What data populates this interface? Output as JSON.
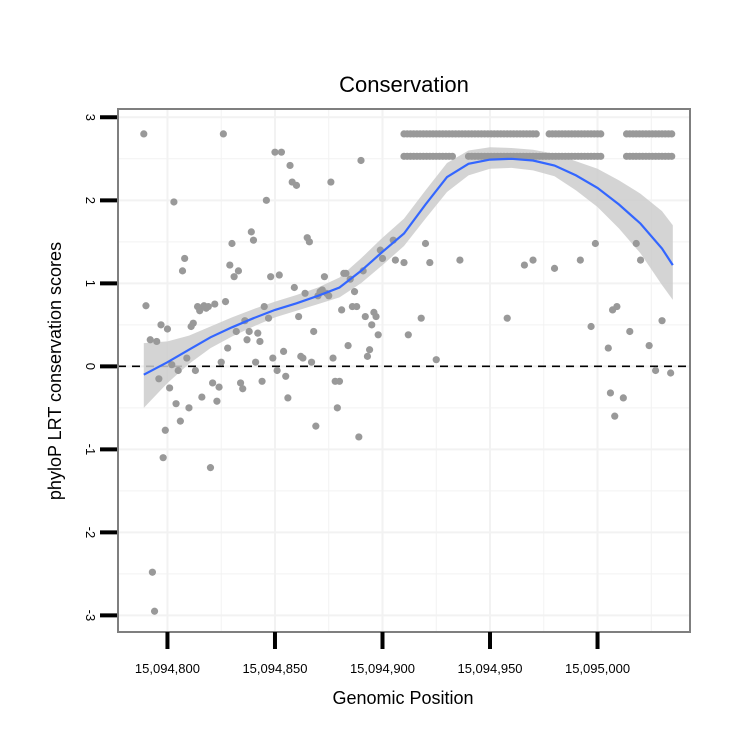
{
  "chart_data": {
    "type": "scatter",
    "title": "Conservation",
    "xlabel": "Genomic Position",
    "ylabel": "phyloP LRT conservation scores",
    "xlim": [
      15094777,
      15095043
    ],
    "ylim": [
      -3.2,
      3.1
    ],
    "x_ticks": [
      15094800,
      15094850,
      15094900,
      15094950,
      15095000
    ],
    "x_tick_labels": [
      "15,094,800",
      "15,094,850",
      "15,094,900",
      "15,094,950",
      "15,095,000"
    ],
    "y_ticks": [
      -3,
      -2,
      -1,
      0,
      1,
      2,
      3
    ],
    "y_tick_labels": [
      "-3",
      "-2",
      "-1",
      "0",
      "1",
      "2",
      "3"
    ],
    "reference_line": {
      "y": 0,
      "style": "dashed"
    },
    "colors": {
      "points": "#999999",
      "smooth_line": "#3366FF",
      "confidence_band": "#cccccc",
      "border": "#7f7f7f",
      "grid": "#f2f2f2"
    },
    "points": [
      [
        15094789,
        2.8
      ],
      [
        15094790,
        0.73
      ],
      [
        15094792,
        0.32
      ],
      [
        15094793,
        -2.48
      ],
      [
        15094794,
        -2.95
      ],
      [
        15094795,
        0.3
      ],
      [
        15094796,
        -0.15
      ],
      [
        15094797,
        0.5
      ],
      [
        15094798,
        -1.1
      ],
      [
        15094799,
        -0.77
      ],
      [
        15094800,
        0.45
      ],
      [
        15094801,
        -0.26
      ],
      [
        15094802,
        0.02
      ],
      [
        15094803,
        1.98
      ],
      [
        15094804,
        -0.45
      ],
      [
        15094805,
        -0.05
      ],
      [
        15094806,
        -0.66
      ],
      [
        15094807,
        1.15
      ],
      [
        15094808,
        1.3
      ],
      [
        15094809,
        0.1
      ],
      [
        15094810,
        -0.5
      ],
      [
        15094811,
        0.48
      ],
      [
        15094812,
        0.52
      ],
      [
        15094813,
        -0.05
      ],
      [
        15094814,
        0.72
      ],
      [
        15094815,
        0.67
      ],
      [
        15094816,
        -0.37
      ],
      [
        15094817,
        0.73
      ],
      [
        15094818,
        0.7
      ],
      [
        15094819,
        0.72
      ],
      [
        15094820,
        -1.22
      ],
      [
        15094821,
        -0.2
      ],
      [
        15094822,
        0.75
      ],
      [
        15094823,
        -0.42
      ],
      [
        15094824,
        -0.25
      ],
      [
        15094825,
        0.05
      ],
      [
        15094826,
        2.8
      ],
      [
        15094827,
        0.78
      ],
      [
        15094828,
        0.22
      ],
      [
        15094829,
        1.22
      ],
      [
        15094830,
        1.48
      ],
      [
        15094831,
        1.08
      ],
      [
        15094832,
        0.42
      ],
      [
        15094833,
        1.15
      ],
      [
        15094834,
        -0.2
      ],
      [
        15094835,
        -0.27
      ],
      [
        15094836,
        0.55
      ],
      [
        15094837,
        0.32
      ],
      [
        15094838,
        0.42
      ],
      [
        15094839,
        1.62
      ],
      [
        15094840,
        1.52
      ],
      [
        15094841,
        0.05
      ],
      [
        15094842,
        0.4
      ],
      [
        15094843,
        0.3
      ],
      [
        15094844,
        -0.18
      ],
      [
        15094845,
        0.72
      ],
      [
        15094846,
        2.0
      ],
      [
        15094847,
        0.58
      ],
      [
        15094848,
        1.08
      ],
      [
        15094849,
        0.1
      ],
      [
        15094850,
        2.58
      ],
      [
        15094851,
        -0.05
      ],
      [
        15094852,
        1.1
      ],
      [
        15094853,
        2.58
      ],
      [
        15094854,
        0.18
      ],
      [
        15094855,
        -0.12
      ],
      [
        15094856,
        -0.38
      ],
      [
        15094857,
        2.42
      ],
      [
        15094858,
        2.22
      ],
      [
        15094859,
        0.95
      ],
      [
        15094860,
        2.18
      ],
      [
        15094861,
        0.6
      ],
      [
        15094862,
        0.12
      ],
      [
        15094863,
        0.1
      ],
      [
        15094864,
        0.88
      ],
      [
        15094865,
        1.55
      ],
      [
        15094866,
        1.5
      ],
      [
        15094867,
        0.05
      ],
      [
        15094868,
        0.42
      ],
      [
        15094869,
        -0.72
      ],
      [
        15094870,
        0.85
      ],
      [
        15094871,
        0.9
      ],
      [
        15094872,
        0.92
      ],
      [
        15094873,
        1.08
      ],
      [
        15094874,
        0.88
      ],
      [
        15094875,
        0.85
      ],
      [
        15094876,
        2.22
      ],
      [
        15094877,
        0.1
      ],
      [
        15094878,
        -0.18
      ],
      [
        15094879,
        -0.5
      ],
      [
        15094880,
        -0.18
      ],
      [
        15094881,
        0.68
      ],
      [
        15094882,
        1.12
      ],
      [
        15094883,
        1.12
      ],
      [
        15094884,
        0.25
      ],
      [
        15094885,
        1.05
      ],
      [
        15094886,
        0.72
      ],
      [
        15094887,
        0.9
      ],
      [
        15094888,
        0.72
      ],
      [
        15094889,
        -0.85
      ],
      [
        15094890,
        2.48
      ],
      [
        15094891,
        1.15
      ],
      [
        15094892,
        0.6
      ],
      [
        15094893,
        0.12
      ],
      [
        15094894,
        0.2
      ],
      [
        15094895,
        0.5
      ],
      [
        15094896,
        0.65
      ],
      [
        15094897,
        0.6
      ],
      [
        15094898,
        0.38
      ],
      [
        15094899,
        1.4
      ],
      [
        15094900,
        1.3
      ],
      [
        15094905,
        1.52
      ],
      [
        15094906,
        1.28
      ],
      [
        15094910,
        1.25
      ],
      [
        15094912,
        0.38
      ],
      [
        15094918,
        0.58
      ],
      [
        15094920,
        1.48
      ],
      [
        15094922,
        1.25
      ],
      [
        15094925,
        0.08
      ],
      [
        15094936,
        1.28
      ],
      [
        15094958,
        0.58
      ],
      [
        15094966,
        1.22
      ],
      [
        15094970,
        1.28
      ],
      [
        15094980,
        1.18
      ],
      [
        15094992,
        1.28
      ],
      [
        15094997,
        0.48
      ],
      [
        15094999,
        1.48
      ],
      [
        15095005,
        0.22
      ],
      [
        15095006,
        -0.32
      ],
      [
        15095007,
        0.68
      ],
      [
        15095008,
        -0.6
      ],
      [
        15095009,
        0.72
      ],
      [
        15095012,
        -0.38
      ],
      [
        15095015,
        0.42
      ],
      [
        15095018,
        1.48
      ],
      [
        15095020,
        1.28
      ],
      [
        15095024,
        0.25
      ],
      [
        15095027,
        -0.05
      ],
      [
        15095030,
        0.55
      ],
      [
        15095034,
        -0.08
      ]
    ],
    "dense_rows": [
      {
        "y": 2.8,
        "x_from": 15094910,
        "x_to": 15095035,
        "gaps": [
          [
            15094973,
            15094977
          ],
          [
            15095002,
            15095012
          ]
        ]
      },
      {
        "y": 2.53,
        "x_from": 15094910,
        "x_to": 15095035,
        "gaps": [
          [
            15094933,
            15094939
          ],
          [
            15095002,
            15095013
          ]
        ]
      }
    ],
    "smooth": {
      "x": [
        15094789,
        15094800,
        15094810,
        15094820,
        15094830,
        15094840,
        15094850,
        15094860,
        15094870,
        15094880,
        15094890,
        15094900,
        15094910,
        15094920,
        15094930,
        15094940,
        15094950,
        15094960,
        15094970,
        15094980,
        15094990,
        15095000,
        15095010,
        15095020,
        15095030,
        15095035
      ],
      "y": [
        -0.1,
        0.05,
        0.2,
        0.35,
        0.47,
        0.58,
        0.68,
        0.76,
        0.85,
        0.95,
        1.15,
        1.38,
        1.6,
        1.95,
        2.28,
        2.44,
        2.49,
        2.5,
        2.48,
        2.42,
        2.3,
        2.15,
        1.95,
        1.72,
        1.42,
        1.22
      ],
      "lower": [
        -0.5,
        -0.2,
        0.03,
        0.22,
        0.36,
        0.48,
        0.59,
        0.67,
        0.75,
        0.83,
        1.0,
        1.22,
        1.45,
        1.78,
        2.1,
        2.3,
        2.38,
        2.39,
        2.36,
        2.29,
        2.12,
        1.92,
        1.66,
        1.36,
        0.98,
        0.8
      ],
      "upper": [
        0.28,
        0.3,
        0.37,
        0.48,
        0.59,
        0.69,
        0.78,
        0.86,
        0.95,
        1.07,
        1.3,
        1.55,
        1.78,
        2.12,
        2.45,
        2.6,
        2.64,
        2.63,
        2.61,
        2.56,
        2.47,
        2.38,
        2.24,
        2.08,
        1.87,
        1.7
      ]
    }
  }
}
